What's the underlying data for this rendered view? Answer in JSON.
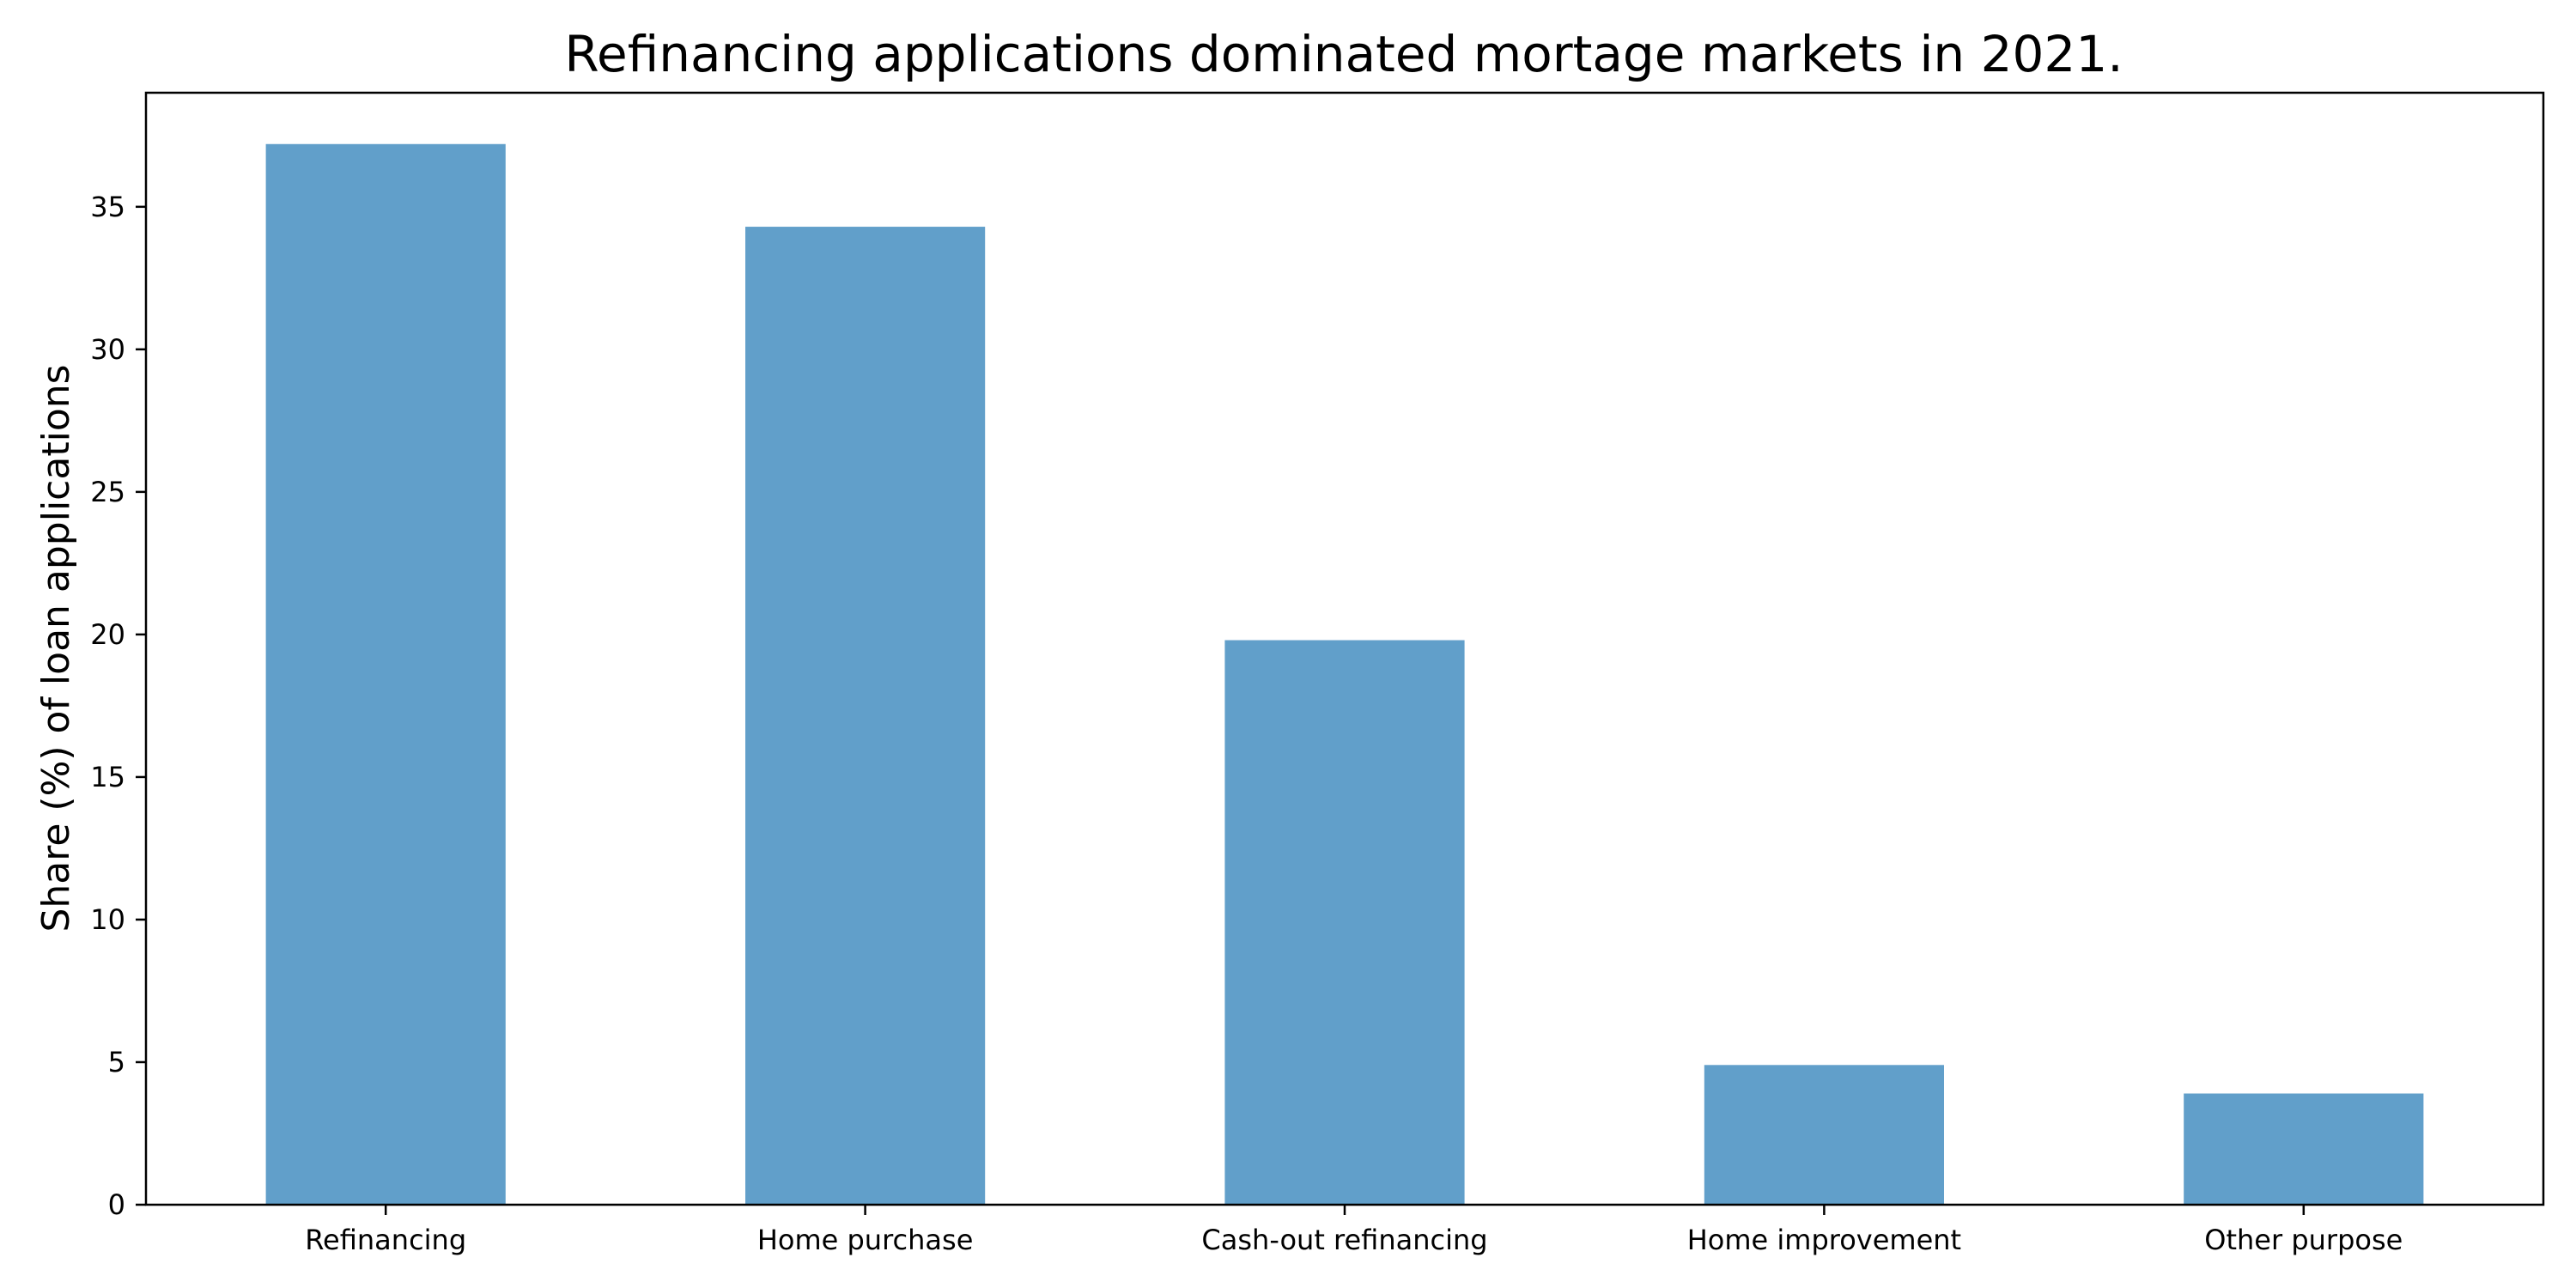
{
  "chart_data": {
    "type": "bar",
    "title": "Refinancing applications dominated mortage markets in 2021.",
    "xlabel": "",
    "ylabel": "Share (%) of loan applications",
    "categories": [
      "Refinancing",
      "Home purchase",
      "Cash-out refinancing",
      "Home improvement",
      "Other purpose"
    ],
    "values": [
      37.2,
      34.3,
      19.8,
      4.9,
      3.9
    ],
    "ylim": [
      0,
      39
    ],
    "yticks": [
      0,
      5,
      10,
      15,
      20,
      25,
      30,
      35
    ],
    "grid": false,
    "legend": "none",
    "bar_color": "#619fca"
  }
}
